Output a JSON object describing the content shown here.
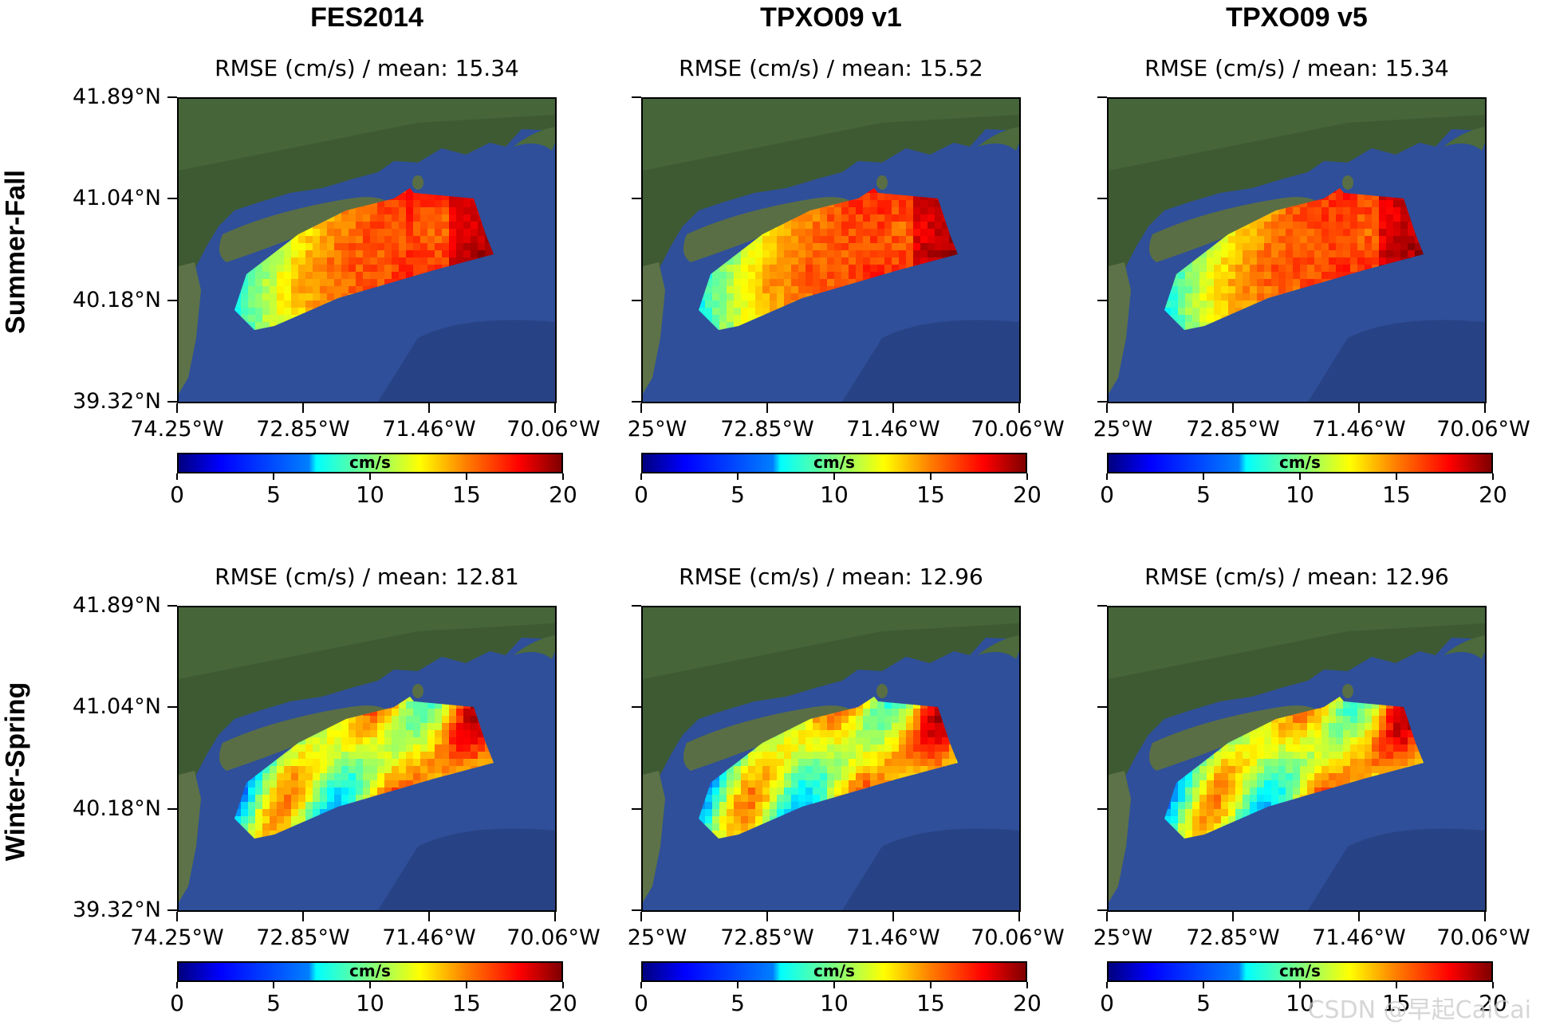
{
  "columns": [
    "FES2014",
    "TPXO09 v1",
    "TPXO09 v5"
  ],
  "rows": [
    "Summer-Fall",
    "Winter-Spring"
  ],
  "panels": [
    {
      "subtitle": "RMSE (cm/s) / mean: 15.34"
    },
    {
      "subtitle": "RMSE (cm/s) / mean: 15.52"
    },
    {
      "subtitle": "RMSE (cm/s) / mean: 15.34"
    },
    {
      "subtitle": "RMSE (cm/s) / mean: 12.81"
    },
    {
      "subtitle": "RMSE (cm/s) / mean: 12.96"
    },
    {
      "subtitle": "RMSE (cm/s) / mean: 12.96"
    }
  ],
  "y_ticks": [
    "41.89°N",
    "41.04°N",
    "40.18°N",
    "39.32°N"
  ],
  "x_ticks_first": [
    "74.25°W",
    "72.85°W",
    "71.46°W",
    "70.06°W"
  ],
  "x_ticks_other": [
    "25°W",
    "72.85°W",
    "71.46°W",
    "70.06°W"
  ],
  "colorbar": {
    "label": "cm/s",
    "ticks": [
      "0",
      "5",
      "10",
      "15",
      "20"
    ],
    "colormap": "jet"
  },
  "watermark": "CSDN @早起CaiCai",
  "chart_data": {
    "type": "heatmap",
    "colormap": "jet",
    "value_range": [
      0,
      20
    ],
    "lat_range": [
      39.32,
      41.89
    ],
    "lon_range": [
      -74.25,
      -70.06
    ],
    "panel_means": [
      {
        "column": "FES2014",
        "row": "Summer-Fall",
        "mean": 15.34
      },
      {
        "column": "TPXO09 v1",
        "row": "Summer-Fall",
        "mean": 15.52
      },
      {
        "column": "TPXO09 v5",
        "row": "Summer-Fall",
        "mean": 15.34
      },
      {
        "column": "FES2014",
        "row": "Winter-Spring",
        "mean": 12.81
      },
      {
        "column": "TPXO09 v1",
        "row": "Winter-Spring",
        "mean": 12.96
      },
      {
        "column": "TPXO09 v5",
        "row": "Winter-Spring",
        "mean": 12.96
      }
    ]
  }
}
